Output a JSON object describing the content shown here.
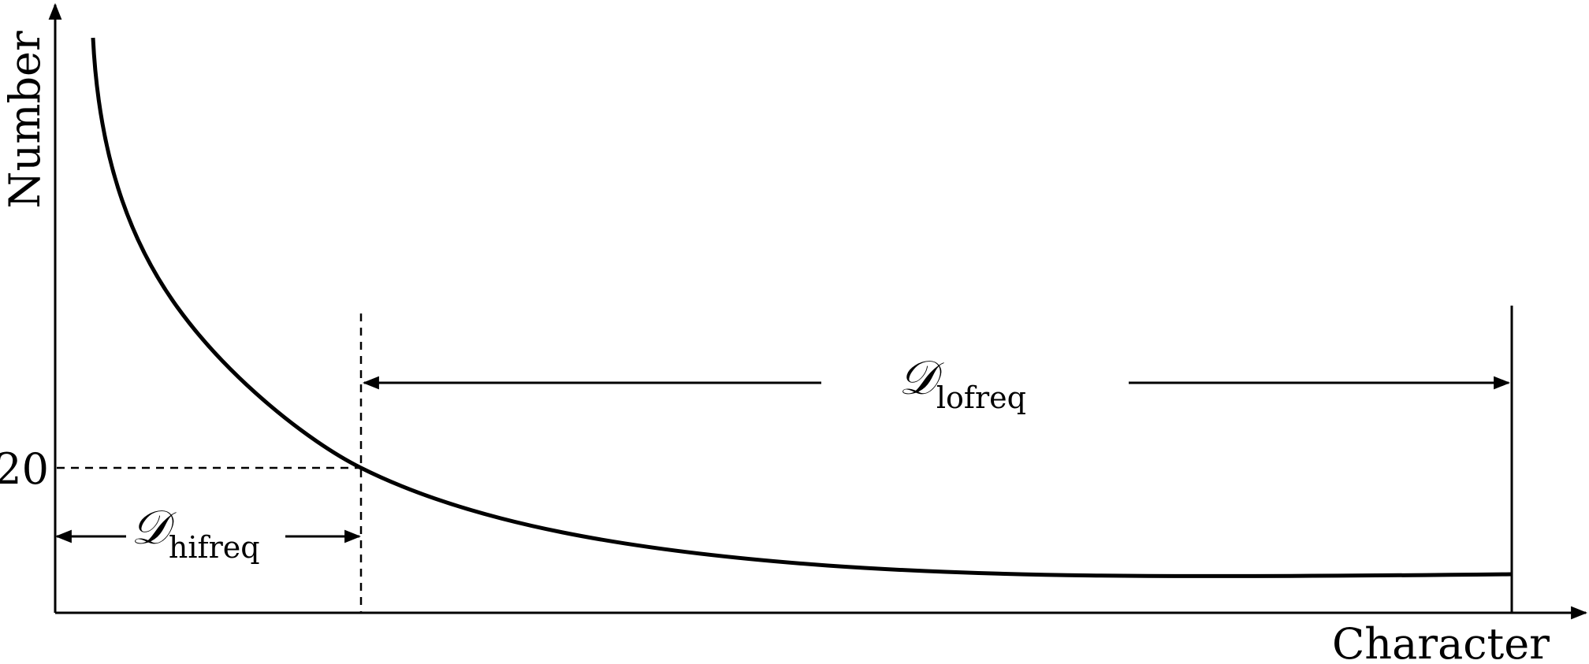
{
  "axes": {
    "y_label": "Number",
    "x_label": "Character",
    "y_tick_label": "20"
  },
  "regions": {
    "hifreq": {
      "symbol": "𝒟",
      "subscript": "hifreq"
    },
    "lofreq": {
      "symbol": "𝒟",
      "subscript": "lofreq"
    }
  }
}
